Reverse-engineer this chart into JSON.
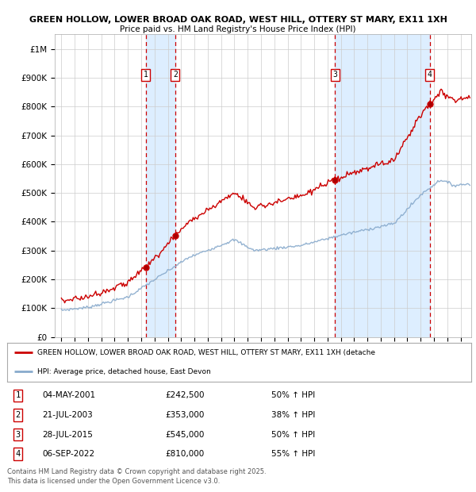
{
  "title_line1": "GREEN HOLLOW, LOWER BROAD OAK ROAD, WEST HILL, OTTERY ST MARY, EX11 1XH",
  "title_line2": "Price paid vs. HM Land Registry's House Price Index (HPI)",
  "ylabel_ticks": [
    "£0",
    "£100K",
    "£200K",
    "£300K",
    "£400K",
    "£500K",
    "£600K",
    "£700K",
    "£800K",
    "£900K",
    "£1M"
  ],
  "ytick_values": [
    0,
    100000,
    200000,
    300000,
    400000,
    500000,
    600000,
    700000,
    800000,
    900000,
    1000000
  ],
  "ylim": [
    0,
    1050000
  ],
  "xlim_start": 1994.5,
  "xlim_end": 2025.8,
  "sale_dates": [
    2001.34,
    2003.55,
    2015.57,
    2022.68
  ],
  "sale_prices": [
    242500,
    353000,
    545000,
    810000
  ],
  "sale_labels": [
    "1",
    "2",
    "3",
    "4"
  ],
  "sale_pct": [
    "50% ↑ HPI",
    "38% ↑ HPI",
    "50% ↑ HPI",
    "55% ↑ HPI"
  ],
  "sale_date_str": [
    "04-MAY-2001",
    "21-JUL-2003",
    "28-JUL-2015",
    "06-SEP-2022"
  ],
  "sale_price_str": [
    "£242,500",
    "£353,000",
    "£545,000",
    "£810,000"
  ],
  "property_color": "#cc0000",
  "hpi_color": "#88aacc",
  "vline_color": "#cc0000",
  "shade_color": "#ddeeff",
  "background_color": "#ffffff",
  "grid_color": "#cccccc",
  "legend_label_property": "GREEN HOLLOW, LOWER BROAD OAK ROAD, WEST HILL, OTTERY ST MARY, EX11 1XH (detache",
  "legend_label_hpi": "HPI: Average price, detached house, East Devon",
  "footer_text": "Contains HM Land Registry data © Crown copyright and database right 2025.\nThis data is licensed under the Open Government Licence v3.0."
}
